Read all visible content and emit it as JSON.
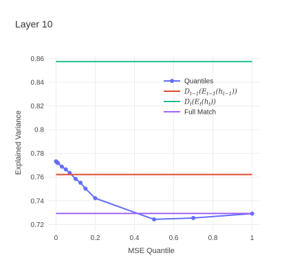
{
  "chart_data": {
    "type": "line",
    "title": "Layer 10",
    "xlabel": "MSE Quantile",
    "ylabel": "Explained Variance",
    "xlim": [
      -0.04,
      1.04
    ],
    "ylim": [
      0.715,
      0.862
    ],
    "xticks": [
      0,
      0.2,
      0.4,
      0.6,
      0.8,
      1
    ],
    "xtick_labels": [
      "0",
      "0.2",
      "0.4",
      "0.6",
      "0.8",
      "1"
    ],
    "yticks": [
      0.72,
      0.74,
      0.76,
      0.78,
      0.8,
      0.82,
      0.84,
      0.86
    ],
    "ytick_labels": [
      "0.72",
      "0.74",
      "0.76",
      "0.78",
      "0.8",
      "0.82",
      "0.84",
      "0.86"
    ],
    "grid": true,
    "legend_position": "top-right",
    "series": [
      {
        "name": "Quantiles",
        "type": "line+markers",
        "color": "#636efa",
        "x": [
          0,
          0.005,
          0.01,
          0.03,
          0.05,
          0.07,
          0.1,
          0.125,
          0.15,
          0.2,
          0.5,
          0.7,
          1
        ],
        "y": [
          0.7733,
          0.7726,
          0.7718,
          0.7688,
          0.7665,
          0.7635,
          0.7585,
          0.7552,
          0.7503,
          0.7422,
          0.7243,
          0.7255,
          0.7292
        ]
      },
      {
        "name": "D_{t-1}(E_{t-1}(h_{t-1}))",
        "legend_parts": [
          {
            "t": "D",
            "k": "base"
          },
          {
            "t": "t−1",
            "k": "sub"
          },
          {
            "t": "(",
            "k": "base"
          },
          {
            "t": "E",
            "k": "base"
          },
          {
            "t": "t−1",
            "k": "sub"
          },
          {
            "t": "(",
            "k": "base"
          },
          {
            "t": "h",
            "k": "base"
          },
          {
            "t": "t−1",
            "k": "sub"
          },
          {
            "t": "))",
            "k": "base"
          }
        ],
        "type": "hline",
        "color": "#dd4a2e",
        "x": [
          0,
          1
        ],
        "y": [
          0.7622,
          0.7622
        ]
      },
      {
        "name": "D_t(E_t(h_t))",
        "legend_parts": [
          {
            "t": "D",
            "k": "base"
          },
          {
            "t": "t",
            "k": "sub"
          },
          {
            "t": "(",
            "k": "base"
          },
          {
            "t": "E",
            "k": "base"
          },
          {
            "t": "t",
            "k": "sub"
          },
          {
            "t": "(",
            "k": "base"
          },
          {
            "t": "h",
            "k": "base"
          },
          {
            "t": "t",
            "k": "sub"
          },
          {
            "t": "))",
            "k": "base"
          }
        ],
        "type": "hline",
        "color": "#1bbc8c",
        "x": [
          0,
          1
        ],
        "y": [
          0.8575,
          0.8575
        ]
      },
      {
        "name": "Full Match",
        "type": "hline",
        "color": "#a062f7",
        "x": [
          0,
          1
        ],
        "y": [
          0.7293,
          0.7293
        ]
      }
    ]
  }
}
